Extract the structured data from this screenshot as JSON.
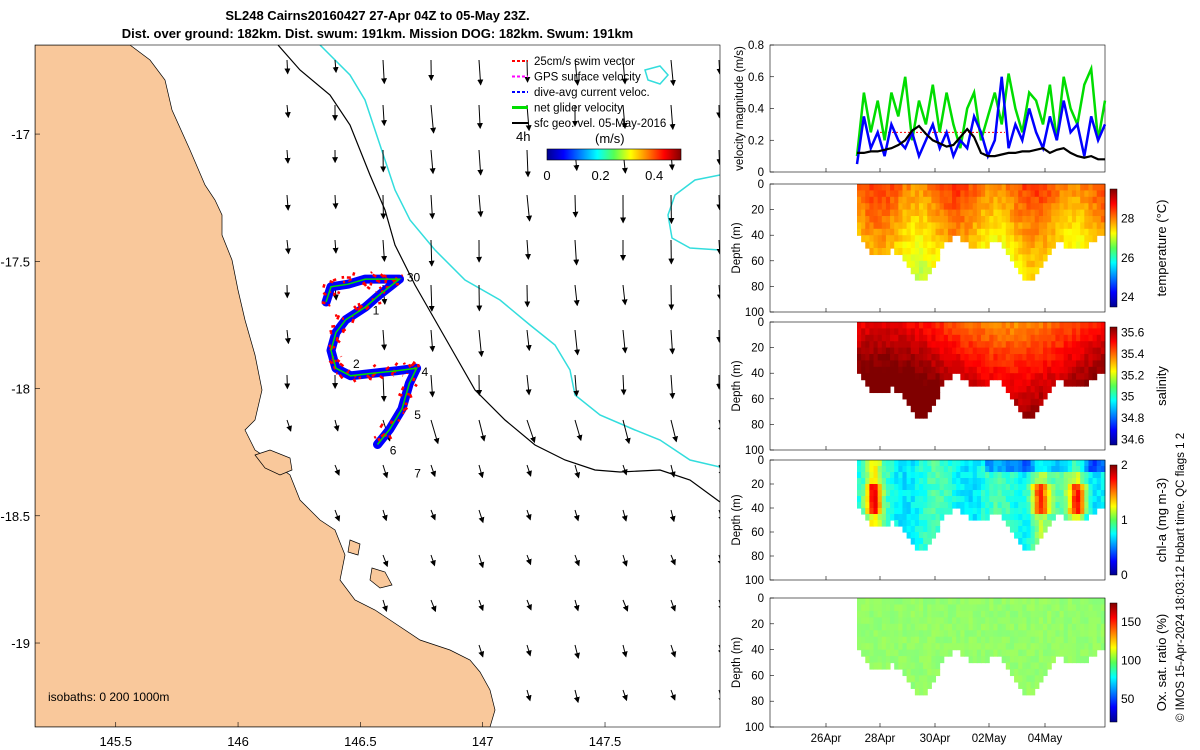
{
  "title": {
    "line1": "SL248 Cairns20160427 27-Apr 04Z to 05-May 23Z.",
    "line2": "Dist. over ground: 182km. Dist. swum: 191km. Mission DOG: 182km. Swum: 191km"
  },
  "credit": "© IMOS 15-Apr-2024 18:03:12 Hobart time. QC flags 1  2",
  "chart_data": [
    {
      "type": "map",
      "x_ticks": [
        "145.5",
        "146",
        "146.5",
        "147",
        "147.5"
      ],
      "x_tick_values": [
        145.5,
        146,
        146.5,
        147,
        147.5
      ],
      "y_ticks": [
        "-17",
        "-17.5",
        "-18",
        "-18.5",
        "-19"
      ],
      "y_tick_values": [
        -17,
        -17.5,
        -18,
        -18.5,
        -19
      ],
      "xlim": [
        145.17,
        147.97
      ],
      "ylim": [
        -19.33,
        -16.65
      ],
      "legend": [
        {
          "label": "25cm/s swim vector",
          "color": "#ff0000"
        },
        {
          "label": "GPS surface velocity",
          "color": "#ff00ff"
        },
        {
          "label": "dive-avg current veloc.",
          "color": "#0000ff"
        },
        {
          "label": "net glider velocity",
          "color": "#00dd00"
        },
        {
          "label": "sfc geo. vel. 05-May-2016",
          "color": "#000000"
        }
      ],
      "colorbar": {
        "label": "(m/s)",
        "ticks": [
          "0",
          "0.2",
          "0.4"
        ],
        "range": [
          0,
          0.5
        ]
      },
      "time_label": "4h",
      "day_labels": [
        {
          "text": "30",
          "lon": 146.69,
          "lat": -17.58
        },
        {
          "text": "1",
          "lon": 146.55,
          "lat": -17.71
        },
        {
          "text": "2",
          "lon": 146.47,
          "lat": -17.92
        },
        {
          "text": "4",
          "lon": 146.75,
          "lat": -17.95
        },
        {
          "text": "5",
          "lon": 146.72,
          "lat": -18.12
        },
        {
          "text": "6",
          "lon": 146.62,
          "lat": -18.26
        },
        {
          "text": "7",
          "lon": 146.72,
          "lat": -18.35
        }
      ],
      "track": [
        [
          146.36,
          -17.66
        ],
        [
          146.38,
          -17.6
        ],
        [
          146.45,
          -17.59
        ],
        [
          146.52,
          -17.57
        ],
        [
          146.62,
          -17.57
        ],
        [
          146.66,
          -17.57
        ],
        [
          146.58,
          -17.63
        ],
        [
          146.52,
          -17.68
        ],
        [
          146.44,
          -17.73
        ],
        [
          146.4,
          -17.78
        ],
        [
          146.38,
          -17.85
        ],
        [
          146.4,
          -17.92
        ],
        [
          146.46,
          -17.95
        ],
        [
          146.55,
          -17.94
        ],
        [
          146.65,
          -17.93
        ],
        [
          146.73,
          -17.92
        ],
        [
          146.7,
          -17.98
        ],
        [
          146.67,
          -18.08
        ],
        [
          146.62,
          -18.16
        ],
        [
          146.57,
          -18.22
        ]
      ],
      "isobaths_label": "isobaths: 0   200   1000m"
    },
    {
      "type": "line",
      "ylabel": "velocity magnitude (m/s)",
      "ylim": [
        0,
        0.8
      ],
      "y_ticks": [
        0,
        0.2,
        0.4,
        0.6,
        0.8
      ],
      "x_ticks": [
        "26Apr",
        "28Apr",
        "30Apr",
        "02May",
        "04May"
      ],
      "series": [
        {
          "color": "#00dd00",
          "values": [
            0.1,
            0.5,
            0.25,
            0.45,
            0.2,
            0.5,
            0.35,
            0.6,
            0.2,
            0.45,
            0.3,
            0.55,
            0.25,
            0.5,
            0.3,
            0.15,
            0.4,
            0.5,
            0.2,
            0.35,
            0.5,
            0.3,
            0.62,
            0.4,
            0.25,
            0.5,
            0.45,
            0.3,
            0.55,
            0.2,
            0.6,
            0.4,
            0.3,
            0.55,
            0.65,
            0.2,
            0.45
          ]
        },
        {
          "color": "#0000ff",
          "values": [
            0.05,
            0.35,
            0.15,
            0.25,
            0.1,
            0.3,
            0.2,
            0.15,
            0.25,
            0.1,
            0.2,
            0.3,
            0.15,
            0.25,
            0.1,
            0.2,
            0.15,
            0.35,
            0.25,
            0.1,
            0.2,
            0.6,
            0.15,
            0.3,
            0.2,
            0.4,
            0.25,
            0.15,
            0.35,
            0.2,
            0.45,
            0.25,
            0.3,
            0.1,
            0.35,
            0.2,
            0.3
          ]
        },
        {
          "color": "#000000",
          "values": [
            0.12,
            0.12,
            0.13,
            0.13,
            0.14,
            0.15,
            0.17,
            0.2,
            0.26,
            0.29,
            0.24,
            0.2,
            0.18,
            0.16,
            0.17,
            0.22,
            0.27,
            0.22,
            0.12,
            0.1,
            0.1,
            0.11,
            0.12,
            0.12,
            0.13,
            0.13,
            0.14,
            0.15,
            0.12,
            0.14,
            0.15,
            0.12,
            0.1,
            0.09,
            0.1,
            0.08,
            0.08
          ]
        }
      ]
    },
    {
      "type": "heatmap",
      "ylabel": "Depth (m)",
      "colorbar_label": "temperature (°C)",
      "colorbar_ticks": [
        "24",
        "26",
        "28"
      ],
      "colorbar_range": [
        23.5,
        29.5
      ],
      "depth_ticks": [
        0,
        20,
        40,
        60,
        80,
        100
      ]
    },
    {
      "type": "heatmap",
      "ylabel": "Depth (m)",
      "colorbar_label": "salinity",
      "colorbar_ticks": [
        "34.6",
        "34.8",
        "35",
        "35.2",
        "35.4",
        "35.6"
      ],
      "colorbar_range": [
        34.55,
        35.65
      ],
      "depth_ticks": [
        0,
        20,
        40,
        60,
        80,
        100
      ]
    },
    {
      "type": "heatmap",
      "ylabel": "Depth (m)",
      "colorbar_label": "chl-a (mg m-3)",
      "colorbar_ticks": [
        "0",
        "1",
        "2"
      ],
      "colorbar_range": [
        0,
        2
      ],
      "depth_ticks": [
        0,
        20,
        40,
        60,
        80,
        100
      ]
    },
    {
      "type": "heatmap",
      "ylabel": "Depth (m)",
      "colorbar_label": "Ox. sat. ratio (%)",
      "colorbar_ticks": [
        "50",
        "100",
        "150"
      ],
      "colorbar_range": [
        20,
        175
      ],
      "depth_ticks": [
        0,
        20,
        40,
        60,
        80,
        100
      ],
      "x_ticks": [
        "26Apr",
        "28Apr",
        "30Apr",
        "02May",
        "04May"
      ]
    }
  ]
}
